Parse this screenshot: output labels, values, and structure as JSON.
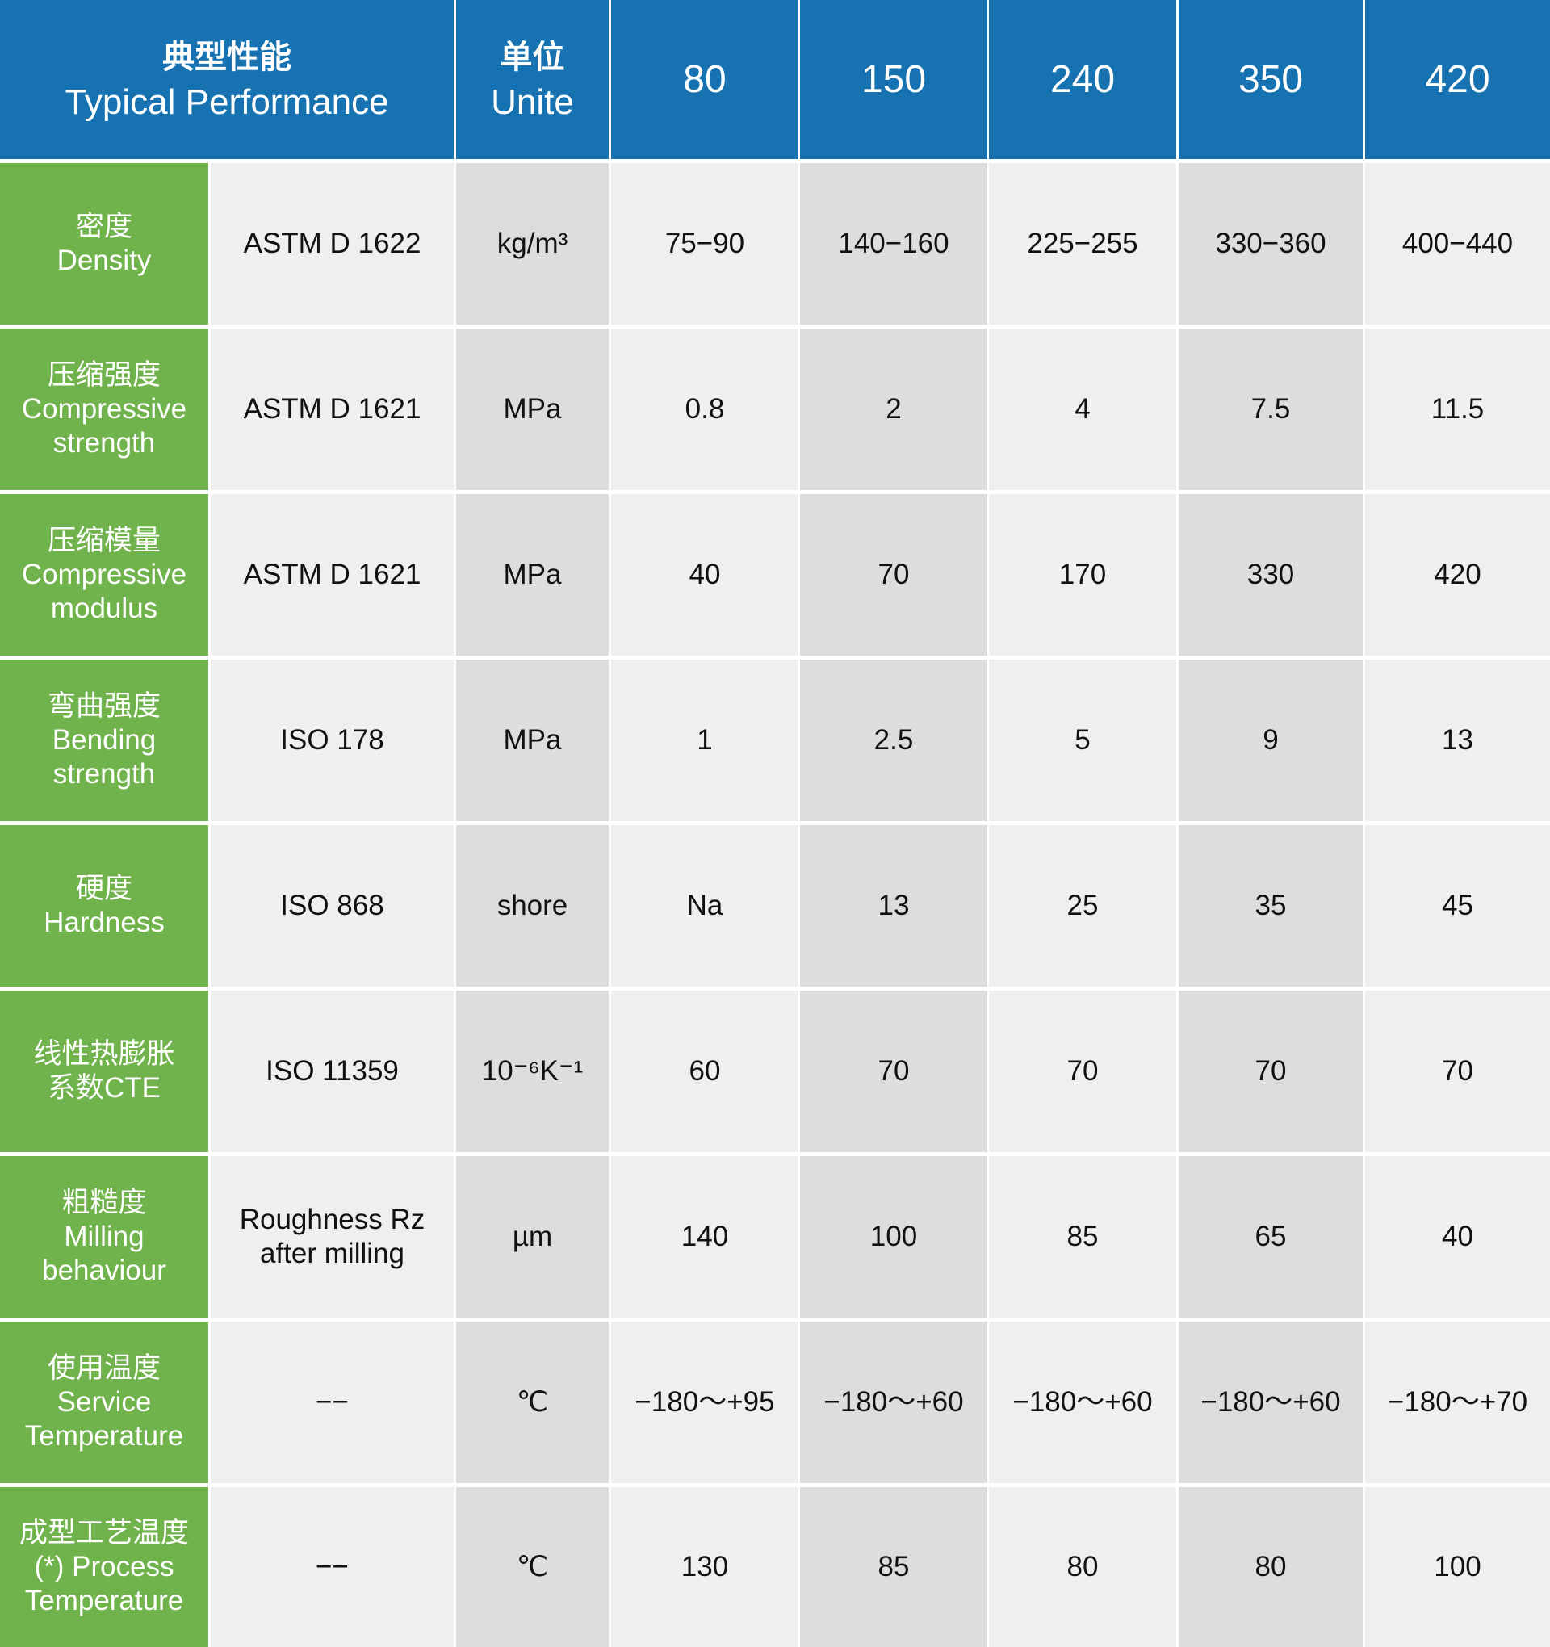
{
  "header": {
    "title_zh": "典型性能",
    "title_en": "Typical Performance",
    "unit_zh": "单位",
    "unit_en": "Unite",
    "grades": [
      "80",
      "150",
      "240",
      "350",
      "420"
    ]
  },
  "colors": {
    "header": "#1672b0",
    "label": "#70b34c",
    "light": "#efefef",
    "dark": "#dcdedd"
  },
  "rows": [
    {
      "label": [
        "密度",
        "Density"
      ],
      "method": "ASTM D 1622",
      "unit": "kg/m³",
      "values": [
        "75−90",
        "140−160",
        "225−255",
        "330−360",
        "400−440"
      ]
    },
    {
      "label": [
        "压缩强度",
        "Compressive",
        "strength"
      ],
      "method": "ASTM D 1621",
      "unit": "MPa",
      "values": [
        "0.8",
        "2",
        "4",
        "7.5",
        "11.5"
      ]
    },
    {
      "label": [
        "压缩模量",
        "Compressive",
        "modulus"
      ],
      "method": "ASTM D 1621",
      "unit": "MPa",
      "values": [
        "40",
        "70",
        "170",
        "330",
        "420"
      ]
    },
    {
      "label": [
        "弯曲强度",
        "Bending",
        "strength"
      ],
      "method": "ISO 178",
      "unit": "MPa",
      "values": [
        "1",
        "2.5",
        "5",
        "9",
        "13"
      ]
    },
    {
      "label": [
        "硬度",
        "Hardness"
      ],
      "method": "ISO 868",
      "unit": "shore",
      "values": [
        "Na",
        "13",
        "25",
        "35",
        "45"
      ]
    },
    {
      "label": [
        "线性热膨胀",
        "系数CTE"
      ],
      "method": "ISO 11359",
      "unit": "10⁻⁶K⁻¹",
      "values": [
        "60",
        "70",
        "70",
        "70",
        "70"
      ]
    },
    {
      "label": [
        "粗糙度",
        "Milling",
        "behaviour"
      ],
      "method": "Roughness Rz after milling",
      "unit": "µm",
      "values": [
        "140",
        "100",
        "85",
        "65",
        "40"
      ]
    },
    {
      "label": [
        "使用温度",
        "Service",
        "Temperature"
      ],
      "method": "−−",
      "unit": "℃",
      "values": [
        "−180〜+95",
        "−180〜+60",
        "−180〜+60",
        "−180〜+60",
        "−180〜+70"
      ]
    },
    {
      "label": [
        "成型工艺温度",
        "(*) Process",
        "Temperature"
      ],
      "method": "−−",
      "unit": "℃",
      "values": [
        "130",
        "85",
        "80",
        "80",
        "100"
      ]
    }
  ]
}
